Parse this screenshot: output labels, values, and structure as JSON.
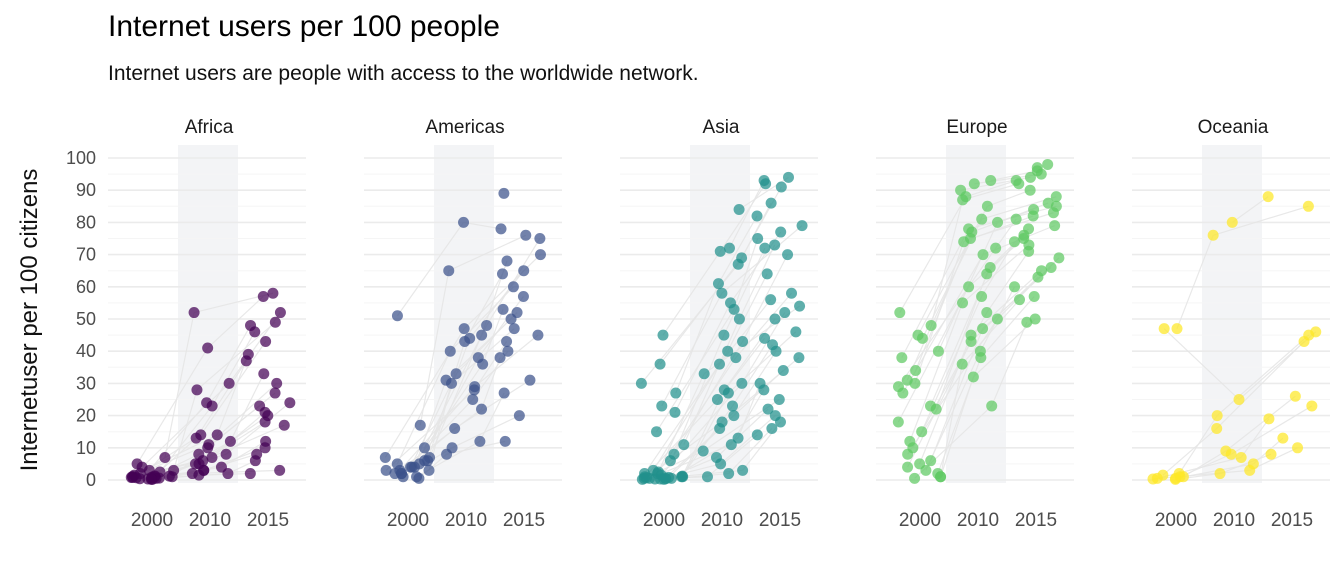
{
  "chart_data": {
    "type": "scatter",
    "title": "Internet users per 100 people",
    "subtitle": "Internet users are people with access to the worldwide network.",
    "ylabel": "Internetuser per 100 citizens",
    "xlabel": "",
    "ylim": [
      0,
      100
    ],
    "y_ticks": [
      "0",
      "10",
      "20",
      "30",
      "40",
      "50",
      "60",
      "70",
      "80",
      "90",
      "100"
    ],
    "x_ticks": [
      "2000",
      "2010",
      "2015"
    ],
    "grid": true,
    "highlight_band": "around 2010",
    "facets": [
      {
        "name": "Africa",
        "color": "#440154",
        "y2000": [
          0.5,
          1,
          1.5,
          2,
          3,
          0.2,
          0.8,
          1.2,
          0.5,
          0.3,
          4,
          7,
          0.6,
          1.1,
          0.9,
          0.4,
          2.5,
          0.7,
          1.3,
          0.2,
          5,
          0.8,
          1,
          3
        ],
        "y2010": [
          52,
          41,
          30,
          28,
          24,
          23,
          14,
          14,
          13,
          12,
          10,
          8,
          7,
          6,
          5,
          4,
          3,
          3,
          2,
          2,
          5,
          8,
          11,
          1.5
        ],
        "y2015": [
          58,
          57,
          52,
          49,
          48,
          46,
          43,
          39,
          37,
          33,
          30,
          27,
          24,
          23,
          21,
          20,
          18,
          17,
          12,
          10,
          8,
          6,
          3,
          2
        ]
      },
      {
        "name": "Americas",
        "color": "#3b528b",
        "y2000": [
          51,
          17,
          10,
          7,
          6,
          6,
          5,
          4,
          4,
          3,
          3,
          2,
          2,
          1,
          1,
          0.5,
          5,
          3,
          7,
          2,
          4
        ],
        "y2010": [
          80,
          65,
          48,
          47,
          45,
          44,
          43,
          40,
          38,
          36,
          33,
          31,
          30,
          29,
          28,
          25,
          22,
          16,
          12,
          10,
          8
        ],
        "y2015": [
          89,
          78,
          76,
          75,
          70,
          68,
          65,
          64,
          60,
          57,
          53,
          52,
          50,
          47,
          45,
          43,
          40,
          38,
          31,
          27,
          20,
          12
        ]
      },
      {
        "name": "Asia",
        "color": "#21908c",
        "y2000": [
          45,
          36,
          30,
          27,
          23,
          21,
          15,
          11,
          8,
          6,
          3,
          2,
          2,
          1,
          1,
          0.5,
          0.5,
          0.3,
          0.2,
          0.8,
          1.5,
          2.5,
          0.4,
          1,
          0.6,
          0.3,
          0.7,
          1.2,
          0.5,
          0.2
        ],
        "y2010": [
          84,
          72,
          71,
          69,
          67,
          61,
          58,
          55,
          53,
          50,
          45,
          43,
          40,
          38,
          36,
          33,
          30,
          28,
          27,
          25,
          23,
          20,
          18,
          16,
          13,
          11,
          9,
          7,
          5,
          3,
          2,
          1
        ],
        "y2015": [
          94,
          93,
          92,
          91,
          86,
          82,
          79,
          77,
          75,
          73,
          72,
          70,
          64,
          58,
          56,
          54,
          52,
          50,
          46,
          44,
          42,
          40,
          38,
          34,
          30,
          28,
          25,
          22,
          20,
          18,
          16,
          14
        ]
      },
      {
        "name": "Europe",
        "color": "#5ec962",
        "y2000": [
          52,
          48,
          45,
          44,
          40,
          38,
          34,
          31,
          30,
          29,
          27,
          23,
          22,
          18,
          15,
          12,
          10,
          8,
          6,
          5,
          4,
          3,
          2,
          1,
          0.5,
          1
        ],
        "y2010": [
          93,
          92,
          90,
          88,
          87,
          85,
          81,
          80,
          78,
          77,
          75,
          74,
          72,
          70,
          66,
          64,
          60,
          57,
          55,
          52,
          50,
          47,
          45,
          43,
          40,
          38,
          36,
          32,
          23
        ],
        "y2015": [
          98,
          97,
          96,
          95,
          94,
          93,
          92,
          90,
          88,
          86,
          85,
          84,
          83,
          82,
          81,
          79,
          78,
          76,
          75,
          74,
          73,
          71,
          69,
          66,
          65,
          63,
          60,
          57,
          56,
          50,
          49
        ]
      },
      {
        "name": "Oceania",
        "color": "#fde725",
        "y2000": [
          47,
          47,
          2,
          1.5,
          1,
          1,
          0.5,
          0.5,
          0.3,
          0.2
        ],
        "y2010": [
          80,
          76,
          25,
          20,
          16,
          9,
          8,
          7,
          5,
          3,
          2
        ],
        "y2015": [
          88,
          85,
          46,
          45,
          43,
          26,
          23,
          19,
          13,
          10,
          8
        ]
      }
    ]
  }
}
